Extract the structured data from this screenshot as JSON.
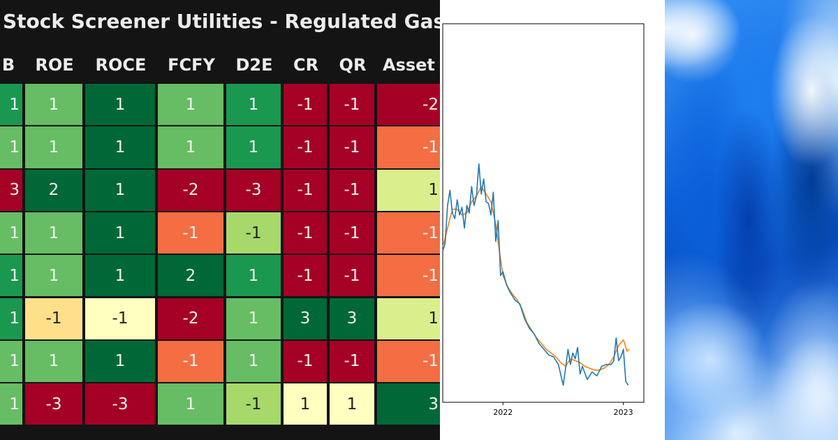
{
  "title": "Stock Screener Utilities - Regulated Gas",
  "colors": {
    "-3": "#a50026",
    "-2": "#a50026",
    "-1": "#a50026",
    "dark_green": "#006837",
    "medium_green": "#1a9850",
    "light_green": "#66bd63",
    "pale_green": "#a6d96a",
    "lime": "#d9ef8b",
    "cream": "#ffffbf",
    "light_orange": "#fee08b",
    "orange": "#f46d43",
    "mid_orange": "#fdae61",
    "red": "#a50026"
  },
  "heatmap": {
    "columns": [
      "B",
      "ROE",
      "ROCE",
      "FCFY",
      "D2E",
      "CR",
      "QR",
      "Asset"
    ],
    "rows": [
      {
        "values": [
          "1",
          "1",
          "1",
          "1",
          "1",
          "-1",
          "-1",
          "-2"
        ],
        "colors": [
          "#1a9850",
          "#66bd63",
          "#006837",
          "#66bd63",
          "#1a9850",
          "#a50026",
          "#a50026",
          "#a50026"
        ]
      },
      {
        "values": [
          "1",
          "1",
          "1",
          "1",
          "1",
          "-1",
          "-1",
          "-1"
        ],
        "colors": [
          "#66bd63",
          "#66bd63",
          "#006837",
          "#66bd63",
          "#1a9850",
          "#a50026",
          "#a50026",
          "#f46d43"
        ]
      },
      {
        "values": [
          "3",
          "2",
          "1",
          "-2",
          "-3",
          "-1",
          "-1",
          "1"
        ],
        "colors": [
          "#a50026",
          "#006837",
          "#006837",
          "#a50026",
          "#a50026",
          "#a50026",
          "#a50026",
          "#d9ef8b"
        ]
      },
      {
        "values": [
          "1",
          "1",
          "1",
          "-1",
          "-1",
          "-1",
          "-1",
          "-1"
        ],
        "colors": [
          "#66bd63",
          "#66bd63",
          "#006837",
          "#f46d43",
          "#a6d96a",
          "#a50026",
          "#a50026",
          "#f46d43"
        ]
      },
      {
        "values": [
          "1",
          "1",
          "1",
          "2",
          "1",
          "-1",
          "-1",
          "-1"
        ],
        "colors": [
          "#1a9850",
          "#66bd63",
          "#006837",
          "#006837",
          "#1a9850",
          "#a50026",
          "#a50026",
          "#f46d43"
        ]
      },
      {
        "values": [
          "1",
          "-1",
          "-1",
          "-2",
          "1",
          "3",
          "3",
          "1"
        ],
        "colors": [
          "#1a9850",
          "#fee08b",
          "#ffffbf",
          "#a50026",
          "#66bd63",
          "#006837",
          "#006837",
          "#d9ef8b"
        ]
      },
      {
        "values": [
          "1",
          "1",
          "1",
          "-1",
          "1",
          "-1",
          "-1",
          "-1"
        ],
        "colors": [
          "#66bd63",
          "#66bd63",
          "#006837",
          "#f46d43",
          "#66bd63",
          "#a50026",
          "#a50026",
          "#f46d43"
        ]
      },
      {
        "values": [
          "1",
          "-3",
          "-3",
          "1",
          "-1",
          "1",
          "1",
          "3"
        ],
        "colors": [
          "#66bd63",
          "#a50026",
          "#a50026",
          "#66bd63",
          "#a6d96a",
          "#ffffbf",
          "#ffffbf",
          "#006837"
        ]
      }
    ]
  },
  "chart_data": {
    "type": "line",
    "title": "",
    "xlabel": "",
    "ylabel": "",
    "x_ticks": [
      "2022",
      "2023"
    ],
    "x_range": [
      2021.5,
      2023.17
    ],
    "y_range": [
      0,
      100
    ],
    "grid": false,
    "series": [
      {
        "color": "#1f77b4",
        "x": [
          2021.5,
          2021.52,
          2021.54,
          2021.56,
          2021.58,
          2021.6,
          2021.62,
          2021.64,
          2021.66,
          2021.68,
          2021.7,
          2021.72,
          2021.74,
          2021.76,
          2021.78,
          2021.8,
          2021.82,
          2021.84,
          2021.86,
          2021.88,
          2021.9,
          2021.92,
          2021.94,
          2021.96,
          2021.98,
          2022.0,
          2022.03,
          2022.06,
          2022.1,
          2022.14,
          2022.18,
          2022.22,
          2022.26,
          2022.3,
          2022.34,
          2022.38,
          2022.42,
          2022.46,
          2022.5,
          2022.52,
          2022.54,
          2022.56,
          2022.58,
          2022.6,
          2022.62,
          2022.64,
          2022.66,
          2022.7,
          2022.74,
          2022.78,
          2022.82,
          2022.86,
          2022.9,
          2022.92,
          2022.94,
          2022.96,
          2022.98,
          2023.0,
          2023.02,
          2023.04
        ],
        "y": [
          40.0,
          42.0,
          52.0,
          56.0,
          50.0,
          48.5,
          53.5,
          49.5,
          51.5,
          46.0,
          52.0,
          50.0,
          57.0,
          52.0,
          54.5,
          63.0,
          55.0,
          59.0,
          53.0,
          52.5,
          49.5,
          55.5,
          42.5,
          48.0,
          33.5,
          34.5,
          31.0,
          29.0,
          27.0,
          26.0,
          22.0,
          19.5,
          18.0,
          15.5,
          14.0,
          12.5,
          12.0,
          10.0,
          4.5,
          9.0,
          14.0,
          10.0,
          13.0,
          11.5,
          14.5,
          7.5,
          9.5,
          6.0,
          8.0,
          7.0,
          9.5,
          10.0,
          10.0,
          11.0,
          17.0,
          11.0,
          12.0,
          14.0,
          5.5,
          4.5
        ]
      },
      {
        "color": "#ff7f0e",
        "x": [
          2021.5,
          2021.54,
          2021.58,
          2021.62,
          2021.66,
          2021.7,
          2021.74,
          2021.78,
          2021.82,
          2021.86,
          2021.9,
          2021.94,
          2021.97,
          2022.0,
          2022.04,
          2022.08,
          2022.12,
          2022.16,
          2022.2,
          2022.24,
          2022.28,
          2022.32,
          2022.36,
          2022.4,
          2022.44,
          2022.48,
          2022.52,
          2022.56,
          2022.6,
          2022.64,
          2022.68,
          2022.72,
          2022.76,
          2022.8,
          2022.84,
          2022.88,
          2022.92,
          2022.96,
          2023.0,
          2023.03,
          2023.05
        ],
        "y": [
          41.0,
          46.0,
          51.0,
          51.0,
          49.5,
          50.0,
          53.0,
          54.5,
          57.0,
          55.0,
          53.0,
          47.0,
          40.0,
          33.5,
          30.5,
          28.5,
          27.0,
          24.5,
          21.0,
          19.0,
          17.0,
          15.5,
          14.0,
          13.0,
          12.0,
          10.5,
          9.5,
          11.5,
          11.0,
          10.5,
          9.5,
          9.0,
          8.5,
          8.5,
          9.0,
          10.0,
          12.0,
          15.0,
          16.5,
          13.5,
          14.0
        ]
      }
    ]
  }
}
